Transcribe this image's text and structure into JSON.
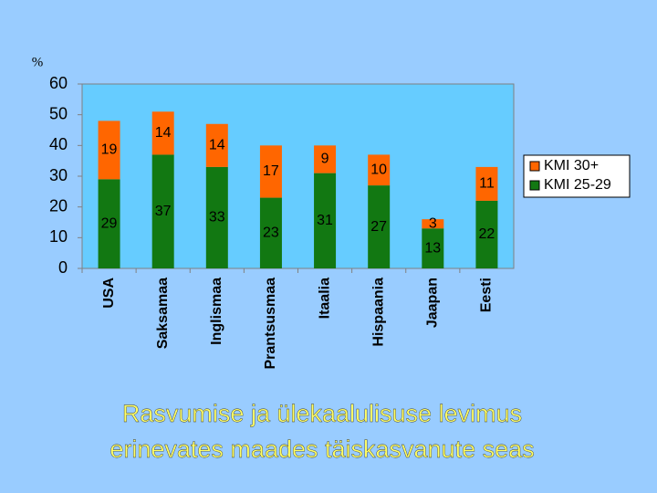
{
  "chart_data": {
    "type": "stacked_bar",
    "y_label": "%",
    "title": [
      "Rasvumise ja ülekaalulisuse levimus",
      "erinevates maades täiskasvanute seas"
    ],
    "categories": [
      "USA",
      "Saksamaa",
      "Inglismaa",
      "Prantsusmaa",
      "Itaalia",
      "Hispaania",
      "Jaapan",
      "Eesti"
    ],
    "series": [
      {
        "name": "KMI 25-29",
        "color": "#127812",
        "values": [
          29,
          37,
          33,
          23,
          31,
          27,
          13,
          22
        ]
      },
      {
        "name": "KMI 30+",
        "color": "#ff6600",
        "values": [
          19,
          14,
          14,
          17,
          9,
          10,
          3,
          11
        ]
      }
    ],
    "ylim": [
      0,
      60
    ],
    "yticks": [
      0,
      10,
      20,
      30,
      40,
      50,
      60
    ],
    "grid": false,
    "legend": "right"
  }
}
